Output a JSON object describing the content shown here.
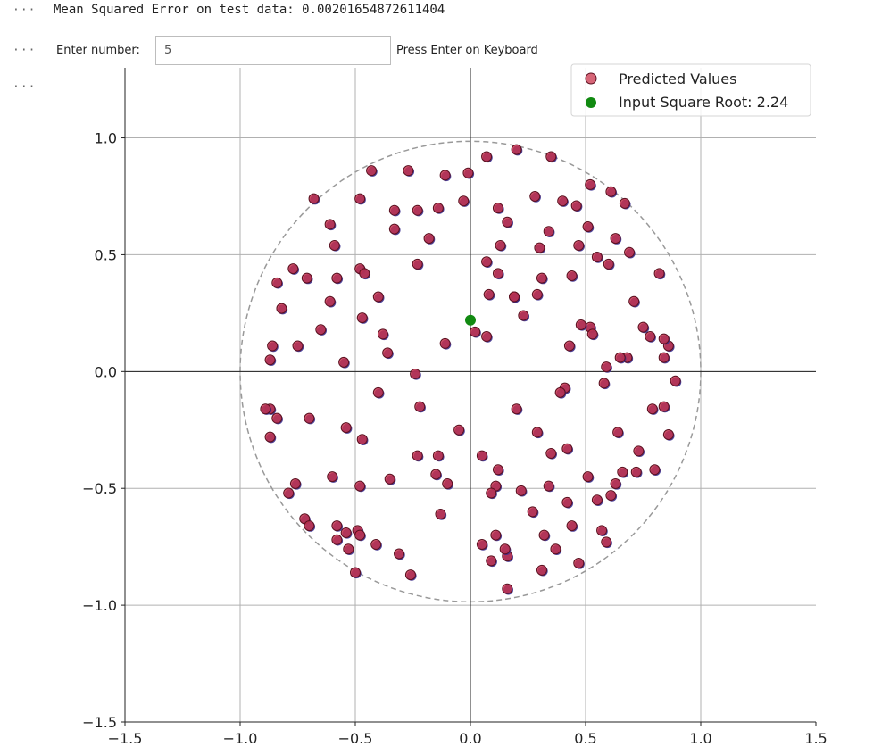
{
  "cells": {
    "prompt_1": "···",
    "prompt_2": "···",
    "prompt_3": "···",
    "mse_output": "Mean Squared Error on test data: 0.00201654872611404"
  },
  "widget": {
    "label": "Enter number:",
    "value": "5",
    "hint": "Press Enter on Keyboard"
  },
  "chart_data": {
    "type": "scatter",
    "title": "",
    "xlabel": "",
    "ylabel": "",
    "xlim": [
      -1.5,
      1.5
    ],
    "ylim": [
      -1.5,
      1.3
    ],
    "x_ticks": [
      "−1.5",
      "−1.0",
      "−0.5",
      "0.0",
      "0.5",
      "1.0",
      "1.5"
    ],
    "y_ticks": [
      "1.0",
      "0.5",
      "0.0",
      "−0.5",
      "−1.0",
      "−1.5"
    ],
    "x_tick_values": [
      -1.5,
      -1.0,
      -0.5,
      0.0,
      0.5,
      1.0,
      1.5
    ],
    "y_tick_values": [
      1.0,
      0.5,
      0.0,
      -0.5,
      -1.0,
      -1.5
    ],
    "grid": true,
    "legend_position": "top-right",
    "circle_radius": 1.0,
    "colors": {
      "predicted": "#c8324a",
      "actual": "#3b2f8f",
      "input": "#118a11",
      "circle": "#999999",
      "grid": "#b0b0b0"
    },
    "series": [
      {
        "name": "Predicted Values",
        "points": [
          [
            -0.86,
            0.11
          ],
          [
            -0.5,
            -0.86
          ],
          [
            -0.72,
            -0.63
          ],
          [
            -0.65,
            0.18
          ],
          [
            -0.27,
            0.86
          ],
          [
            -0.87,
            -0.16
          ],
          [
            -0.4,
            -0.09
          ],
          [
            -0.79,
            -0.52
          ],
          [
            -0.35,
            -0.46
          ],
          [
            -0.33,
            0.69
          ],
          [
            -0.58,
            -0.72
          ],
          [
            -0.47,
            0.23
          ],
          [
            -0.59,
            0.54
          ],
          [
            -0.55,
            0.04
          ],
          [
            -0.24,
            -0.01
          ],
          [
            -0.71,
            0.4
          ],
          [
            -0.68,
            0.74
          ],
          [
            -0.36,
            0.08
          ],
          [
            -0.11,
            0.84
          ],
          [
            -0.23,
            -0.36
          ],
          [
            -0.05,
            -0.25
          ],
          [
            -0.87,
            -0.28
          ],
          [
            -0.43,
            0.86
          ],
          [
            -0.7,
            -0.2
          ],
          [
            -0.14,
            0.7
          ],
          [
            -0.61,
            0.63
          ],
          [
            -0.01,
            0.85
          ],
          [
            -0.84,
            -0.2
          ],
          [
            -0.7,
            -0.66
          ],
          [
            -0.14,
            -0.36
          ],
          [
            -0.53,
            -0.76
          ],
          [
            -0.75,
            0.11
          ],
          [
            -0.48,
            0.44
          ],
          [
            -0.89,
            -0.16
          ],
          [
            -0.18,
            0.57
          ],
          [
            -0.48,
            0.74
          ],
          [
            -0.13,
            -0.61
          ],
          [
            -0.03,
            0.73
          ],
          [
            -0.47,
            -0.29
          ],
          [
            -0.54,
            -0.69
          ],
          [
            -0.82,
            0.27
          ],
          [
            -0.48,
            -0.49
          ],
          [
            -0.23,
            0.69
          ],
          [
            -0.61,
            0.3
          ],
          [
            -0.58,
            -0.66
          ],
          [
            -0.84,
            0.38
          ],
          [
            -0.33,
            0.61
          ],
          [
            -0.31,
            -0.78
          ],
          [
            -0.54,
            -0.24
          ],
          [
            -0.1,
            -0.48
          ],
          [
            -0.49,
            -0.68
          ],
          [
            -0.38,
            0.16
          ],
          [
            -0.48,
            -0.7
          ],
          [
            -0.26,
            -0.87
          ],
          [
            -0.46,
            0.42
          ],
          [
            -0.77,
            0.44
          ],
          [
            -0.87,
            0.05
          ],
          [
            -0.58,
            0.4
          ],
          [
            -0.76,
            -0.48
          ],
          [
            -0.22,
            -0.15
          ],
          [
            -0.41,
            -0.74
          ],
          [
            -0.6,
            -0.45
          ],
          [
            -0.11,
            0.12
          ],
          [
            -0.4,
            0.32
          ],
          [
            -0.15,
            -0.44
          ],
          [
            -0.23,
            0.46
          ],
          [
            0.07,
            0.92
          ],
          [
            0.19,
            0.32
          ],
          [
            0.35,
            0.92
          ],
          [
            0.47,
            0.54
          ],
          [
            0.69,
            0.51
          ],
          [
            0.08,
            0.33
          ],
          [
            0.47,
            -0.82
          ],
          [
            0.16,
            0.64
          ],
          [
            0.51,
            -0.45
          ],
          [
            0.43,
            0.11
          ],
          [
            0.61,
            -0.53
          ],
          [
            0.37,
            -0.76
          ],
          [
            0.32,
            -0.7
          ],
          [
            0.31,
            0.4
          ],
          [
            0.16,
            -0.93
          ],
          [
            0.86,
            0.11
          ],
          [
            0.11,
            -0.49
          ],
          [
            0.66,
            -0.43
          ],
          [
            0.57,
            -0.68
          ],
          [
            0.29,
            0.33
          ],
          [
            0.05,
            -0.36
          ],
          [
            0.68,
            0.06
          ],
          [
            0.12,
            0.7
          ],
          [
            0.42,
            -0.56
          ],
          [
            0.34,
            -0.49
          ],
          [
            0.09,
            -0.52
          ],
          [
            0.52,
            0.19
          ],
          [
            0.73,
            -0.34
          ],
          [
            0.51,
            0.62
          ],
          [
            0.79,
            -0.16
          ],
          [
            0.71,
            0.3
          ],
          [
            0.44,
            0.41
          ],
          [
            0.52,
            0.8
          ],
          [
            0.48,
            0.2
          ],
          [
            0.64,
            -0.26
          ],
          [
            0.02,
            0.17
          ],
          [
            0.41,
            -0.07
          ],
          [
            0.16,
            -0.79
          ],
          [
            0.89,
            -0.04
          ],
          [
            0.6,
            0.46
          ],
          [
            0.28,
            0.75
          ],
          [
            0.72,
            -0.43
          ],
          [
            0.2,
            0.95
          ],
          [
            0.11,
            -0.7
          ],
          [
            0.53,
            0.16
          ],
          [
            0.55,
            -0.55
          ],
          [
            0.67,
            0.72
          ],
          [
            0.27,
            -0.6
          ],
          [
            0.07,
            0.15
          ],
          [
            0.31,
            -0.85
          ],
          [
            0.59,
            -0.73
          ],
          [
            0.84,
            0.14
          ],
          [
            0.42,
            -0.33
          ],
          [
            0.29,
            -0.26
          ],
          [
            0.63,
            0.57
          ],
          [
            0.46,
            0.71
          ],
          [
            0.05,
            -0.74
          ],
          [
            0.3,
            0.53
          ],
          [
            0.82,
            0.42
          ],
          [
            0.4,
            0.73
          ],
          [
            0.12,
            0.42
          ],
          [
            0.86,
            -0.27
          ],
          [
            0.78,
            0.15
          ],
          [
            0.2,
            -0.16
          ],
          [
            0.59,
            0.02
          ],
          [
            0.58,
            -0.05
          ],
          [
            0.55,
            0.49
          ],
          [
            0.84,
            0.06
          ],
          [
            0.35,
            -0.35
          ],
          [
            0.09,
            -0.81
          ],
          [
            0.23,
            0.24
          ],
          [
            0.07,
            0.47
          ],
          [
            0.63,
            -0.48
          ],
          [
            0.8,
            -0.42
          ],
          [
            0.39,
            -0.09
          ],
          [
            0.22,
            -0.51
          ],
          [
            0.13,
            0.54
          ],
          [
            0.84,
            -0.15
          ],
          [
            0.61,
            0.77
          ],
          [
            0.19,
            0.32
          ],
          [
            0.12,
            -0.42
          ],
          [
            0.65,
            0.06
          ],
          [
            0.75,
            0.19
          ],
          [
            0.44,
            -0.66
          ],
          [
            0.34,
            0.6
          ],
          [
            0.15,
            -0.76
          ]
        ]
      },
      {
        "name": "Input Square Root: 2.24",
        "points": [
          [
            0.0,
            0.22
          ]
        ]
      }
    ]
  }
}
